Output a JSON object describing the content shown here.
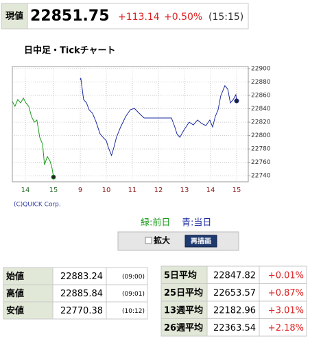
{
  "quote": {
    "label": "現値",
    "price": 22851.75,
    "change": "+113.14",
    "change_pct": "+0.50%",
    "time": "(15:15)"
  },
  "chart_data": {
    "type": "line",
    "title": "日中足・Tickチャート",
    "credit": "(C)QUICK Corp.",
    "ylim": [
      22731,
      22903
    ],
    "yticks": [
      22740,
      22760,
      22780,
      22800,
      22820,
      22840,
      22860,
      22880,
      22900
    ],
    "grid": true,
    "series": [
      {
        "name": "緑:前日",
        "color": "#1a9a1a",
        "x": [
          13.54,
          13.63,
          13.73,
          13.83,
          13.93,
          14.02,
          14.12,
          14.22,
          14.32,
          14.41,
          14.51,
          14.61,
          14.68,
          14.78,
          14.88,
          14.95,
          15.0
        ],
        "values": [
          22850.8,
          22843.6,
          22853.8,
          22848.7,
          22855.9,
          22848.7,
          22843.6,
          22828.2,
          22820.0,
          22823.1,
          22797.4,
          22787.2,
          22756.4,
          22768.7,
          22761.5,
          22751.3,
          22738.0
        ],
        "xticks": [
          14,
          15
        ]
      },
      {
        "name": "青:当日",
        "color": "#1a2aa0",
        "x": [
          9.0,
          9.02,
          9.13,
          9.24,
          9.34,
          9.47,
          9.61,
          9.76,
          9.87,
          10.0,
          10.08,
          10.2,
          10.29,
          10.39,
          10.55,
          10.74,
          10.92,
          11.08,
          11.26,
          11.45,
          11.5,
          12.5,
          12.63,
          12.71,
          12.82,
          12.97,
          13.18,
          13.34,
          13.5,
          13.66,
          13.82,
          13.97,
          14.08,
          14.18,
          14.29,
          14.39,
          14.55,
          14.66,
          14.76,
          14.87,
          14.97,
          15.0
        ],
        "values": [
          22883.24,
          22885.84,
          22853.8,
          22848.7,
          22838.5,
          22833.3,
          22820.0,
          22802.6,
          22797.4,
          22792.3,
          22782.1,
          22770.38,
          22782.1,
          22797.4,
          22812.8,
          22828.2,
          22838.5,
          22840.5,
          22833.3,
          22826.2,
          22826.2,
          22826.2,
          22812.8,
          22802.6,
          22797.4,
          22807.7,
          22820.0,
          22815.9,
          22823.1,
          22817.9,
          22814.9,
          22823.1,
          22812.8,
          22828.2,
          22838.5,
          22859.0,
          22874.4,
          22869.2,
          22848.7,
          22853.8,
          22861.0,
          22851.75
        ],
        "xticks": [
          9,
          10,
          11,
          12,
          13,
          14,
          15
        ]
      }
    ]
  },
  "controls": {
    "checkbox": "拡大",
    "button": "再描画"
  },
  "left_table": {
    "rows": [
      [
        "始値",
        22883.24,
        "(09:00)"
      ],
      [
        "高値",
        22885.84,
        "(09:01)"
      ],
      [
        "安値",
        22770.38,
        "(10:12)"
      ]
    ]
  },
  "right_table": {
    "rows": [
      [
        "5日平均",
        22847.82,
        "+0.01%"
      ],
      [
        "25日平均",
        22653.57,
        "+0.87%"
      ],
      [
        "13週平均",
        22182.96,
        "+3.01%"
      ],
      [
        "26週平均",
        22363.54,
        "+2.18%"
      ]
    ]
  }
}
